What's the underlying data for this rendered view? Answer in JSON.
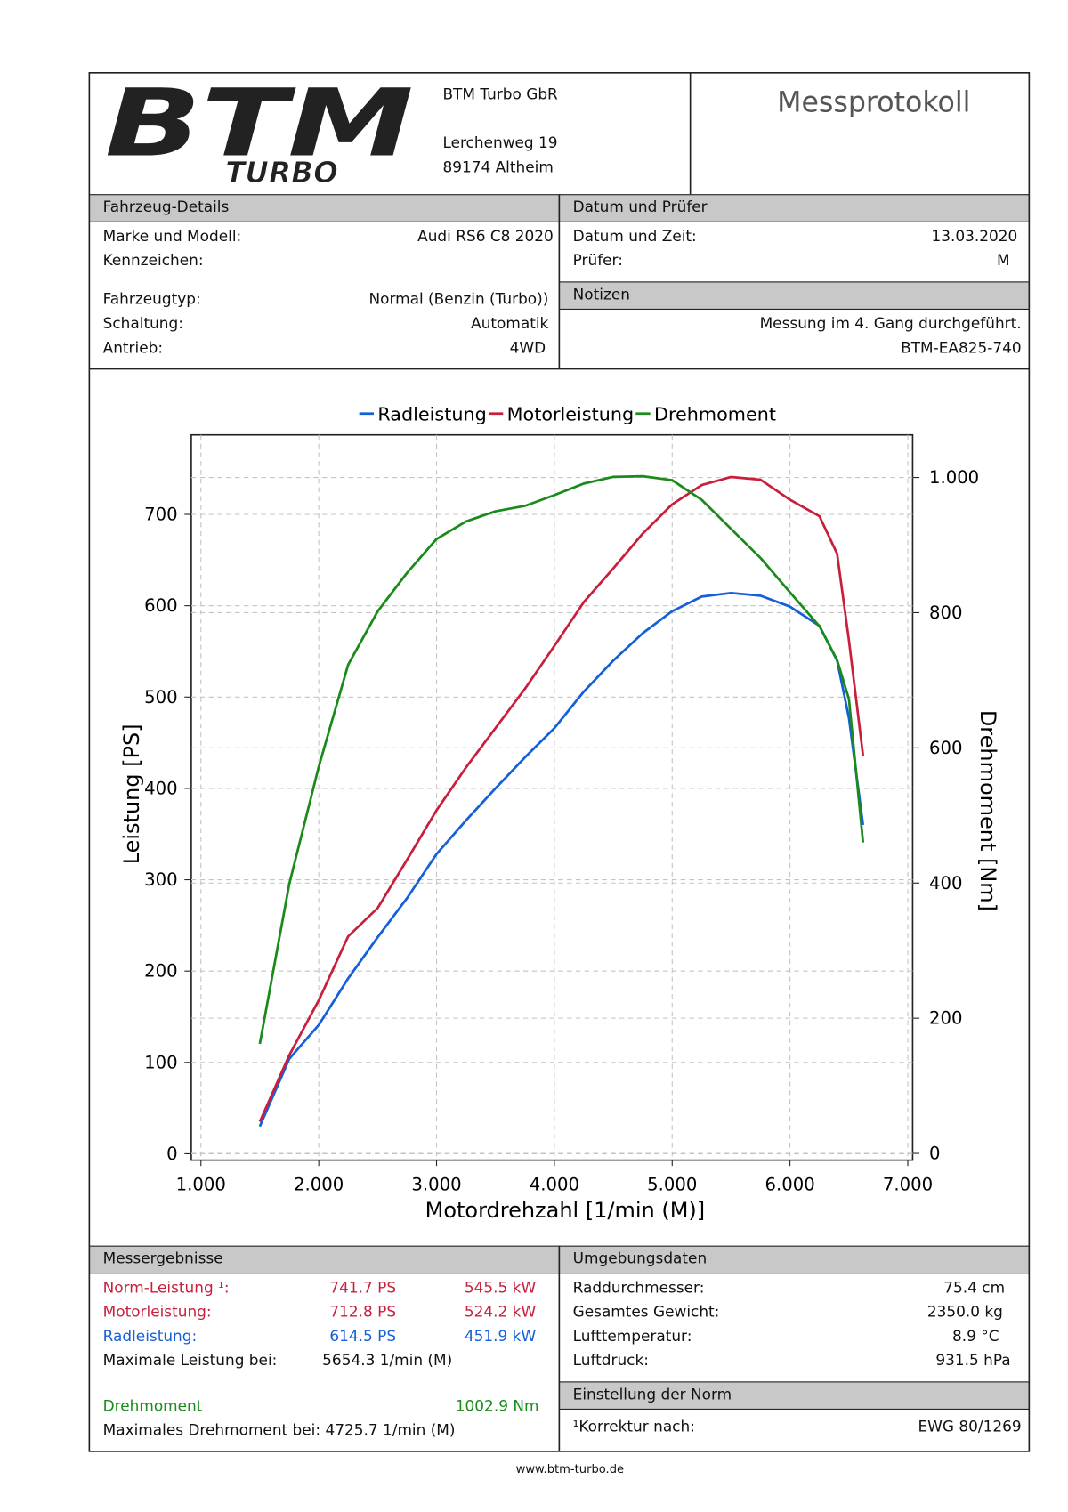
{
  "header": {
    "logo": "BTM",
    "logo_sub": "TURBO",
    "company": "BTM Turbo GbR",
    "street": "Lerchenweg 19",
    "city": "89174 Altheim",
    "title": "Messprotokoll"
  },
  "vehicle": {
    "heading": "Fahrzeug-Details",
    "rows": [
      {
        "label": "Marke und Modell:",
        "value": "Audi RS6 C8 2020"
      },
      {
        "label": "Kennzeichen:"
      },
      {
        "label": "Fahrzeugtyp:",
        "value": "Normal (Benzin (Turbo))"
      },
      {
        "label": "Schaltung:",
        "value": "Automatik"
      },
      {
        "label": "Antrieb:",
        "value": "4WD"
      }
    ]
  },
  "inspection": {
    "heading": "Datum und Prüfer",
    "rows": [
      {
        "label": "Datum und Zeit:",
        "value": "13.03.2020"
      },
      {
        "label": "Prüfer:",
        "value": "M"
      }
    ]
  },
  "notes": {
    "heading": "Notizen",
    "lines": [
      "Messung im 4. Gang durchgeführt.",
      "BTM-EA825-740"
    ]
  },
  "chart_data": {
    "type": "line",
    "x_label": "Motordrehzahl [1/min (M)]",
    "y_label": "Leistung [PS]",
    "y2_label": "Drehmoment [Nm]",
    "x": [
      1500,
      1750,
      2000,
      2250,
      2500,
      2750,
      3000,
      3250,
      3500,
      3750,
      4000,
      4250,
      4500,
      4750,
      5000,
      5250,
      5500,
      5750,
      6000,
      6250,
      6400,
      6500,
      6620
    ],
    "series": [
      {
        "name": "Radleistung",
        "color": "#1560d8",
        "values": [
          30,
          104,
          141,
          192,
          237,
          280,
          328,
          365,
          400,
          434,
          466,
          506,
          540,
          570,
          594,
          610,
          614,
          611,
          599,
          578,
          540,
          477,
          360
        ]
      },
      {
        "name": "Motorleistung",
        "color": "#c8203c",
        "values": [
          35,
          108,
          168,
          238,
          269,
          322,
          376,
          423,
          466,
          509,
          556,
          604,
          641,
          679,
          711,
          732,
          741,
          738,
          716,
          698,
          657,
          562,
          436
        ]
      },
      {
        "name": "Drehmoment",
        "color": "#1a8a1a",
        "axis": "y2",
        "values": [
          162,
          399,
          572,
          723,
          802,
          859,
          909,
          935,
          950,
          958,
          974,
          991,
          1001,
          1002,
          996,
          967,
          924,
          881,
          830,
          780,
          730,
          672,
          460
        ]
      }
    ],
    "xlim": [
      918,
      7041
    ],
    "xticks": [
      {
        "value": 1000,
        "label": "1.000"
      },
      {
        "value": 2000,
        "label": "2.000"
      },
      {
        "value": 3000,
        "label": "3.000"
      },
      {
        "value": 4000,
        "label": "4.000"
      },
      {
        "value": 5000,
        "label": "5.000"
      },
      {
        "value": 6000,
        "label": "6.000"
      },
      {
        "value": 7000,
        "label": "7.000"
      }
    ],
    "ylim": [
      -7,
      787
    ],
    "yticks": [
      0,
      100,
      200,
      300,
      400,
      500,
      600,
      700
    ],
    "y2lim": [
      -10,
      1063
    ],
    "y2ticks": [
      0,
      200,
      400,
      600,
      800,
      {
        "value": 1000,
        "label": "1.000"
      }
    ],
    "grid": true
  },
  "results": {
    "heading": "Messergebnisse",
    "rows": [
      {
        "label": "Norm-Leistung ¹:",
        "ps": "741.7 PS",
        "kw": "545.5 kW",
        "color": "#c8203c"
      },
      {
        "label": "Motorleistung:",
        "ps": "712.8 PS",
        "kw": "524.2 kW",
        "color": "#c8203c"
      },
      {
        "label": "Radleistung:",
        "ps": "614.5 PS",
        "kw": "451.9 kW",
        "color": "#1560d8"
      }
    ],
    "max_power_label": "Maximale Leistung bei:",
    "max_power": "5654.3 1/min (M)",
    "torque_label": "Drehmoment",
    "torque": "1002.9 Nm",
    "torque_color": "#1a8a1a",
    "max_torque": "Maximales Drehmoment bei: 4725.7 1/min (M)"
  },
  "environment": {
    "heading": "Umgebungsdaten",
    "rows": [
      {
        "label": "Raddurchmesser:",
        "value": "75.4 cm"
      },
      {
        "label": "Gesamtes Gewicht:",
        "value": "2350.0 kg"
      },
      {
        "label": "Lufttemperatur:",
        "value": "8.9 °C"
      },
      {
        "label": "Luftdruck:",
        "value": "931.5 hPa"
      }
    ]
  },
  "norm": {
    "heading": "Einstellung der Norm",
    "label": "¹Korrektur nach:",
    "value": "EWG 80/1269"
  },
  "footer": "www.btm-turbo.de"
}
